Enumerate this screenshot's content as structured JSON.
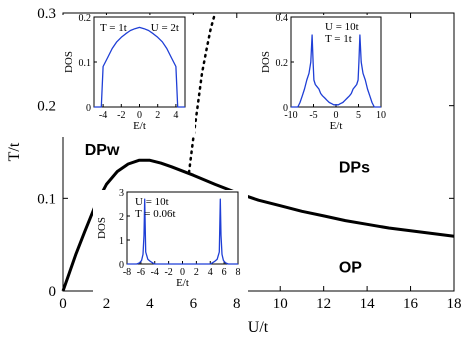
{
  "chart_data": {
    "type": "line",
    "xlabel": "U/t",
    "ylabel": "T/t",
    "xlim": [
      0,
      18
    ],
    "ylim": [
      0,
      0.3
    ],
    "xticks": [
      "0",
      "2",
      "4",
      "6",
      "8",
      "10",
      "12",
      "14",
      "16",
      "18"
    ],
    "yticks": [
      "0",
      "0.1",
      "0.2",
      "0.3"
    ],
    "grid": false,
    "series": [
      {
        "style": "solid",
        "x": [
          0,
          0.3,
          0.6,
          1.0,
          1.5,
          2.0,
          2.5,
          3.0,
          3.5,
          4.0,
          4.5,
          5.0,
          6.0,
          7.0,
          8.0,
          9.0,
          10.0,
          11.0,
          12.0,
          13.0,
          14.0,
          15.0,
          16.0,
          17.0,
          18.0
        ],
        "y": [
          0.0,
          0.02,
          0.04,
          0.064,
          0.093,
          0.115,
          0.129,
          0.137,
          0.141,
          0.141,
          0.138,
          0.134,
          0.125,
          0.115,
          0.106,
          0.098,
          0.092,
          0.086,
          0.081,
          0.076,
          0.072,
          0.068,
          0.065,
          0.062,
          0.059
        ]
      },
      {
        "style": "dotted",
        "x": [
          5.8,
          6.0,
          6.2,
          6.4,
          6.6,
          6.8,
          7.0
        ],
        "y": [
          0.128,
          0.165,
          0.2,
          0.235,
          0.26,
          0.283,
          0.3
        ]
      }
    ],
    "region_labels": [
      {
        "text": "DPw",
        "x": 1.0,
        "y": 0.147
      },
      {
        "text": "DPs",
        "x": 12.7,
        "y": 0.128
      },
      {
        "text": "OP",
        "x": 12.7,
        "y": 0.02
      }
    ],
    "insets": [
      {
        "ylabel": "DOS",
        "xlabel": "E/t",
        "xlim": [
          -5,
          5
        ],
        "ylim": [
          0,
          0.2
        ],
        "xticks": [
          "-4",
          "-2",
          "0",
          "2",
          "4"
        ],
        "yticks": [
          "0",
          "0.1",
          "0.2"
        ],
        "annotations": [
          "T = 1t",
          "U = 2t"
        ],
        "curve_x": [
          -5,
          -4.5,
          -4.2,
          -4.0,
          -3.5,
          -3.0,
          -2.5,
          -2.0,
          -1.5,
          -1.0,
          -0.5,
          0,
          0.5,
          1.0,
          1.5,
          2.0,
          2.5,
          3.0,
          3.5,
          4.0,
          4.2,
          4.5,
          5
        ],
        "curve_y": [
          0,
          0,
          0.0,
          0.09,
          0.11,
          0.13,
          0.145,
          0.155,
          0.163,
          0.17,
          0.174,
          0.177,
          0.174,
          0.17,
          0.163,
          0.155,
          0.145,
          0.13,
          0.11,
          0.09,
          0.0,
          0,
          0
        ]
      },
      {
        "ylabel": "DOS",
        "xlabel": "E/t",
        "xlim": [
          -10,
          10
        ],
        "ylim": [
          0,
          0.4
        ],
        "xticks": [
          "-10",
          "-5",
          "0",
          "5",
          "10"
        ],
        "yticks": [
          "0",
          "0.2",
          "0.4"
        ],
        "annotations": [
          "U = 10t",
          "T = 1t"
        ],
        "curve_x": [
          -10,
          -8.5,
          -8.0,
          -7.5,
          -7.0,
          -6.5,
          -6.0,
          -5.6,
          -5.3,
          -5.1,
          -4.9,
          -4.6,
          -4.2,
          -3.8,
          -3.4,
          -3.0,
          -2.5,
          -2.0,
          -1.5,
          -1.0,
          -0.5,
          0,
          0.5,
          1.0,
          1.5,
          2.0,
          2.5,
          3.0,
          3.4,
          3.8,
          4.2,
          4.6,
          4.9,
          5.1,
          5.3,
          5.6,
          6.0,
          6.5,
          7.0,
          7.5,
          8.0,
          8.5,
          10
        ],
        "curve_y": [
          0,
          0,
          0.02,
          0.05,
          0.08,
          0.12,
          0.15,
          0.2,
          0.32,
          0.2,
          0.12,
          0.1,
          0.09,
          0.08,
          0.06,
          0.05,
          0.04,
          0.03,
          0.02,
          0.015,
          0.01,
          0.01,
          0.01,
          0.015,
          0.02,
          0.03,
          0.04,
          0.05,
          0.06,
          0.08,
          0.09,
          0.1,
          0.12,
          0.2,
          0.32,
          0.2,
          0.15,
          0.12,
          0.08,
          0.05,
          0.02,
          0,
          0
        ]
      },
      {
        "ylabel": "DOS",
        "xlabel": "E/t",
        "xlim": [
          -8,
          8
        ],
        "ylim": [
          0,
          3
        ],
        "xticks": [
          "-8",
          "-6",
          "-4",
          "-2",
          "0",
          "2",
          "4",
          "6",
          "8"
        ],
        "yticks": [
          "0",
          "1",
          "2",
          "3"
        ],
        "annotations": [
          "U = 10t",
          "T = 0.06t"
        ],
        "curve_x": [
          -8,
          -6.6,
          -6.2,
          -5.9,
          -5.7,
          -5.55,
          -5.45,
          -5.3,
          -5.0,
          -4.6,
          -4.2,
          -4.0,
          4.0,
          4.2,
          4.6,
          5.0,
          5.3,
          5.45,
          5.55,
          5.7,
          5.9,
          6.2,
          6.6,
          8
        ],
        "curve_y": [
          0,
          0,
          0.05,
          0.15,
          0.4,
          1.2,
          2.7,
          0.5,
          0.2,
          0.1,
          0.03,
          0,
          0,
          0.03,
          0.1,
          0.2,
          0.5,
          2.7,
          1.2,
          0.4,
          0.15,
          0.05,
          0,
          0
        ]
      }
    ]
  }
}
